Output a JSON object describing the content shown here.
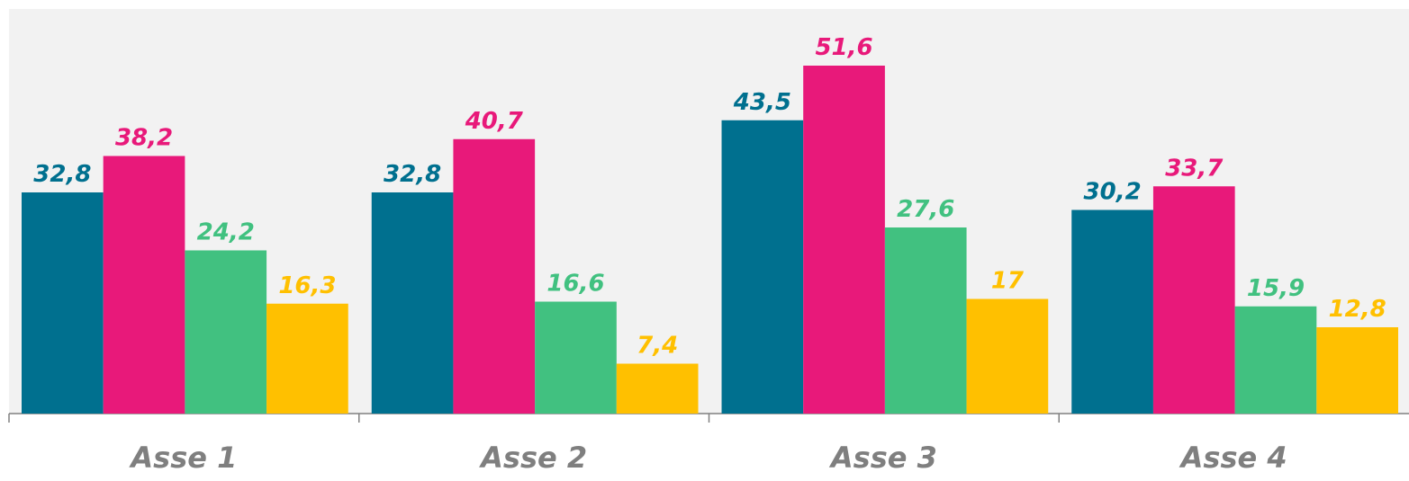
{
  "chart_data": {
    "type": "bar",
    "categories": [
      "Asse 1",
      "Asse 2",
      "Asse 3",
      "Asse 4"
    ],
    "series": [
      {
        "color": "#00708f",
        "values": [
          32.8,
          32.8,
          43.5,
          30.2
        ],
        "value_labels": [
          "32,8",
          "32,8",
          "43,5",
          "30,2"
        ]
      },
      {
        "color": "#e8197a",
        "values": [
          38.2,
          40.7,
          51.6,
          33.7
        ],
        "value_labels": [
          "38,2",
          "40,7",
          "51,6",
          "33,7"
        ]
      },
      {
        "color": "#41c180",
        "values": [
          24.2,
          16.6,
          27.6,
          15.9
        ],
        "value_labels": [
          "24,2",
          "16,6",
          "27,6",
          "15,9"
        ]
      },
      {
        "color": "#ffc000",
        "values": [
          16.3,
          7.4,
          17,
          12.8
        ],
        "value_labels": [
          "16,3",
          "7,4",
          "17",
          "12,8"
        ]
      }
    ],
    "ylim": [
      0,
      60
    ]
  }
}
